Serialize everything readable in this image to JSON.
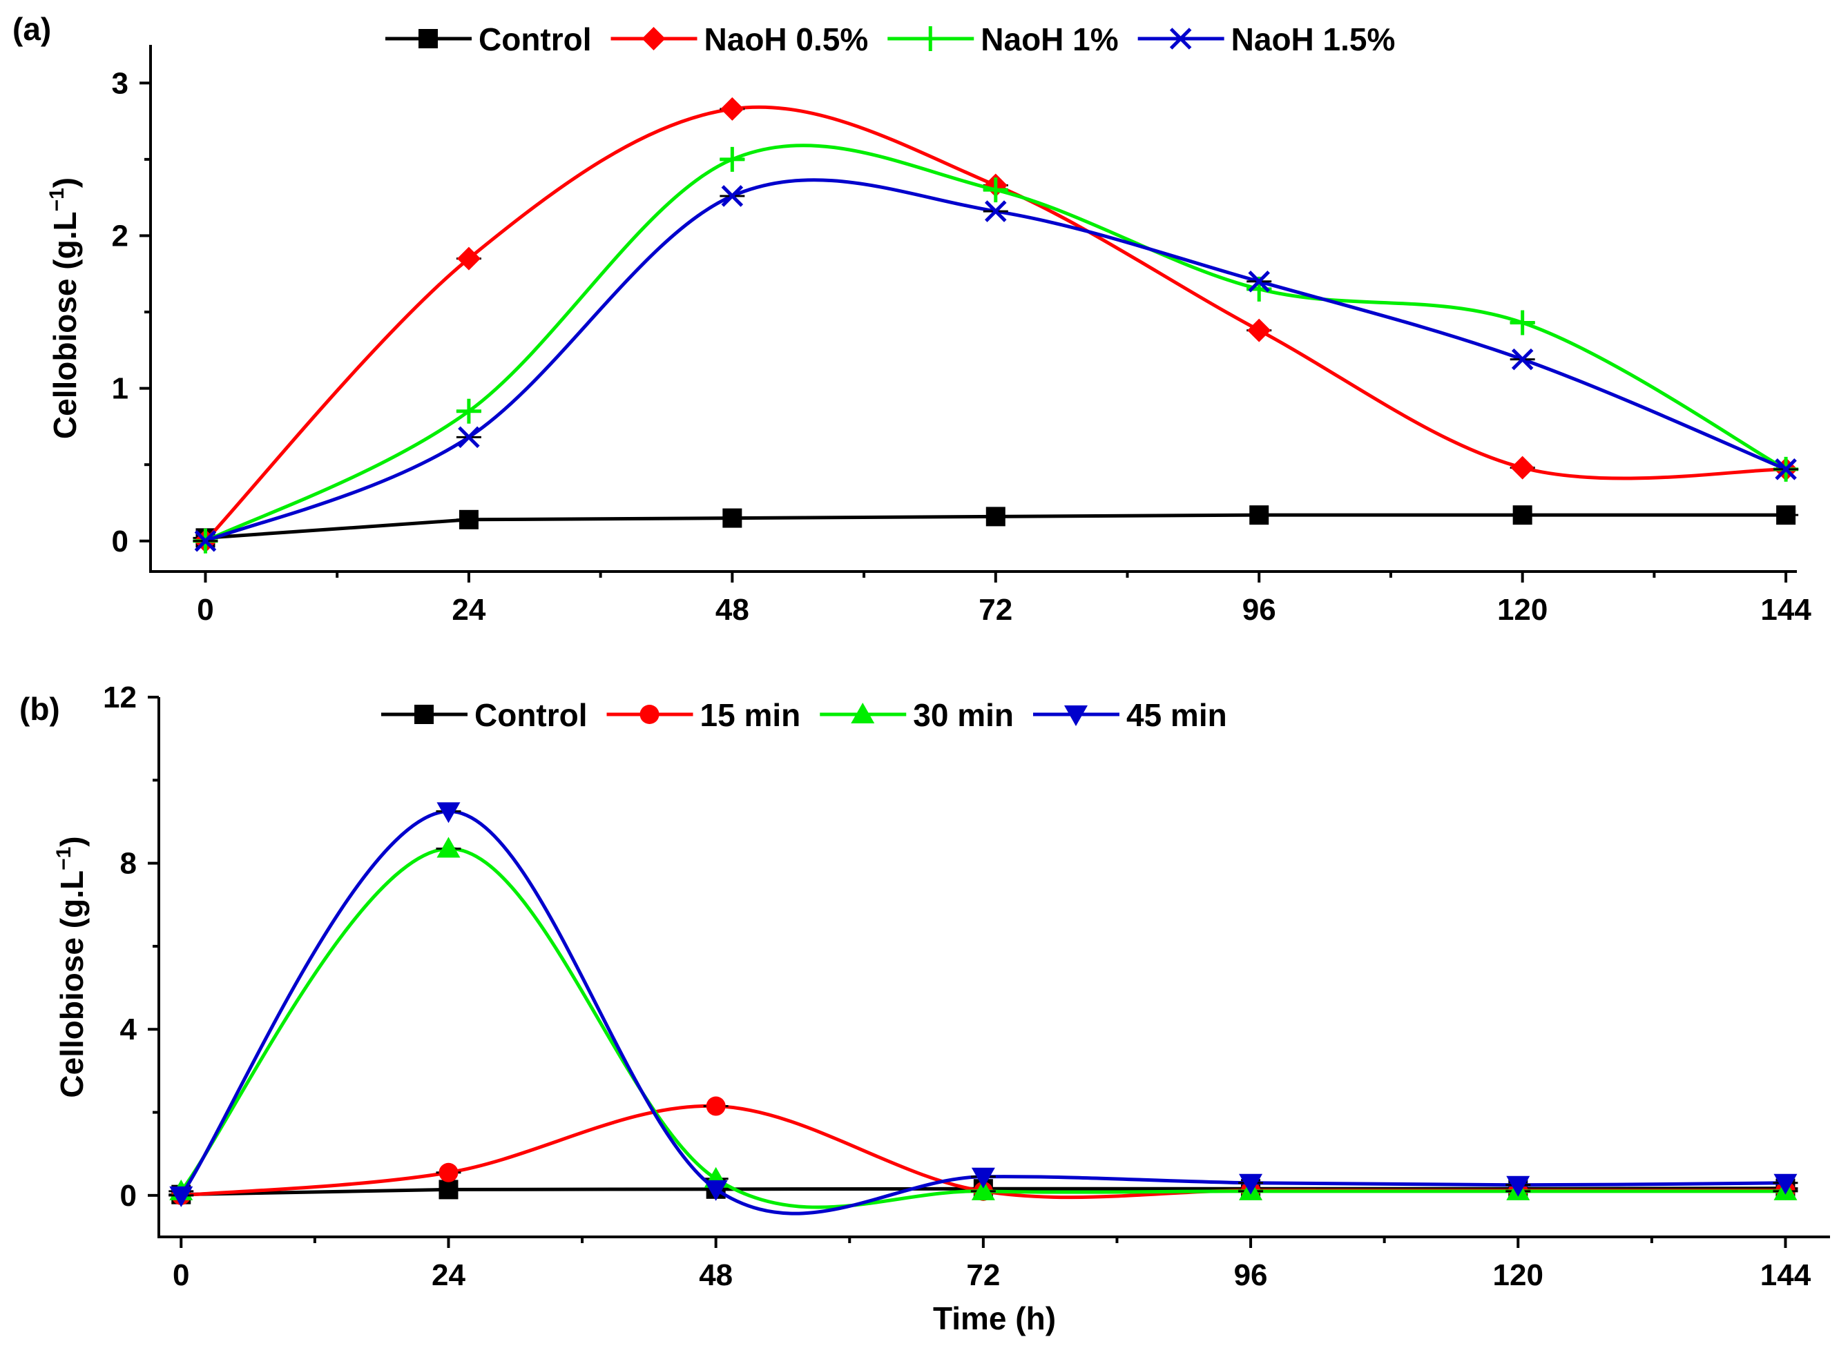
{
  "chart_data": [
    {
      "type": "line",
      "panel_label": "(a)",
      "xlabel": "",
      "ylabel": "Cellobiose (g.L",
      "ylabel_sup": "−1",
      "ylabel_close": ")",
      "x": [
        0,
        24,
        48,
        72,
        96,
        120,
        144
      ],
      "x_ticks": [
        "0",
        "24",
        "48",
        "72",
        "96",
        "120",
        "144"
      ],
      "y_ticks": [
        "0",
        "1",
        "2",
        "3"
      ],
      "xlim": [
        -5,
        145
      ],
      "ylim": [
        -0.2,
        3.25
      ],
      "legend_position": "top",
      "series": [
        {
          "name": "Control",
          "color": "#000000",
          "marker": "square",
          "values": [
            0.02,
            0.14,
            0.15,
            0.16,
            0.17,
            0.17,
            0.17
          ]
        },
        {
          "name": "NaoH 0.5%",
          "color": "#ff0000",
          "marker": "diamond",
          "values": [
            0.0,
            1.85,
            2.83,
            2.33,
            1.38,
            0.48,
            0.47
          ]
        },
        {
          "name": "NaoH 1%",
          "color": "#00ee00",
          "marker": "plus",
          "values": [
            0.0,
            0.85,
            2.5,
            2.3,
            1.65,
            1.43,
            0.47
          ]
        },
        {
          "name": "NaoH 1.5%",
          "color": "#0000cc",
          "marker": "x",
          "values": [
            0.0,
            0.68,
            2.26,
            2.16,
            1.7,
            1.19,
            0.47
          ]
        }
      ]
    },
    {
      "type": "line",
      "panel_label": "(b)",
      "xlabel": "Time (h)",
      "ylabel": "Cellobiose (g.L",
      "ylabel_sup": "−1",
      "ylabel_close": ")",
      "x": [
        0,
        24,
        48,
        72,
        96,
        120,
        144
      ],
      "x_ticks": [
        "0",
        "24",
        "48",
        "72",
        "96",
        "120",
        "144"
      ],
      "y_ticks": [
        "0",
        "4",
        "8",
        "12"
      ],
      "xlim": [
        -2,
        148
      ],
      "ylim": [
        -1,
        12
      ],
      "legend_position": "top",
      "series": [
        {
          "name": "Control",
          "color": "#000000",
          "marker": "square",
          "values": [
            0.02,
            0.14,
            0.15,
            0.16,
            0.16,
            0.16,
            0.17
          ]
        },
        {
          "name": "15 min",
          "color": "#ff0000",
          "marker": "circle",
          "values": [
            0.0,
            0.55,
            2.15,
            0.1,
            0.12,
            0.12,
            0.12
          ]
        },
        {
          "name": "30 min",
          "color": "#00ee00",
          "marker": "triangle-up",
          "values": [
            0.1,
            8.35,
            0.4,
            0.1,
            0.1,
            0.1,
            0.1
          ]
        },
        {
          "name": "45 min",
          "color": "#0000cc",
          "marker": "triangle-down",
          "values": [
            0.0,
            9.25,
            0.15,
            0.45,
            0.3,
            0.25,
            0.3
          ]
        }
      ]
    }
  ]
}
